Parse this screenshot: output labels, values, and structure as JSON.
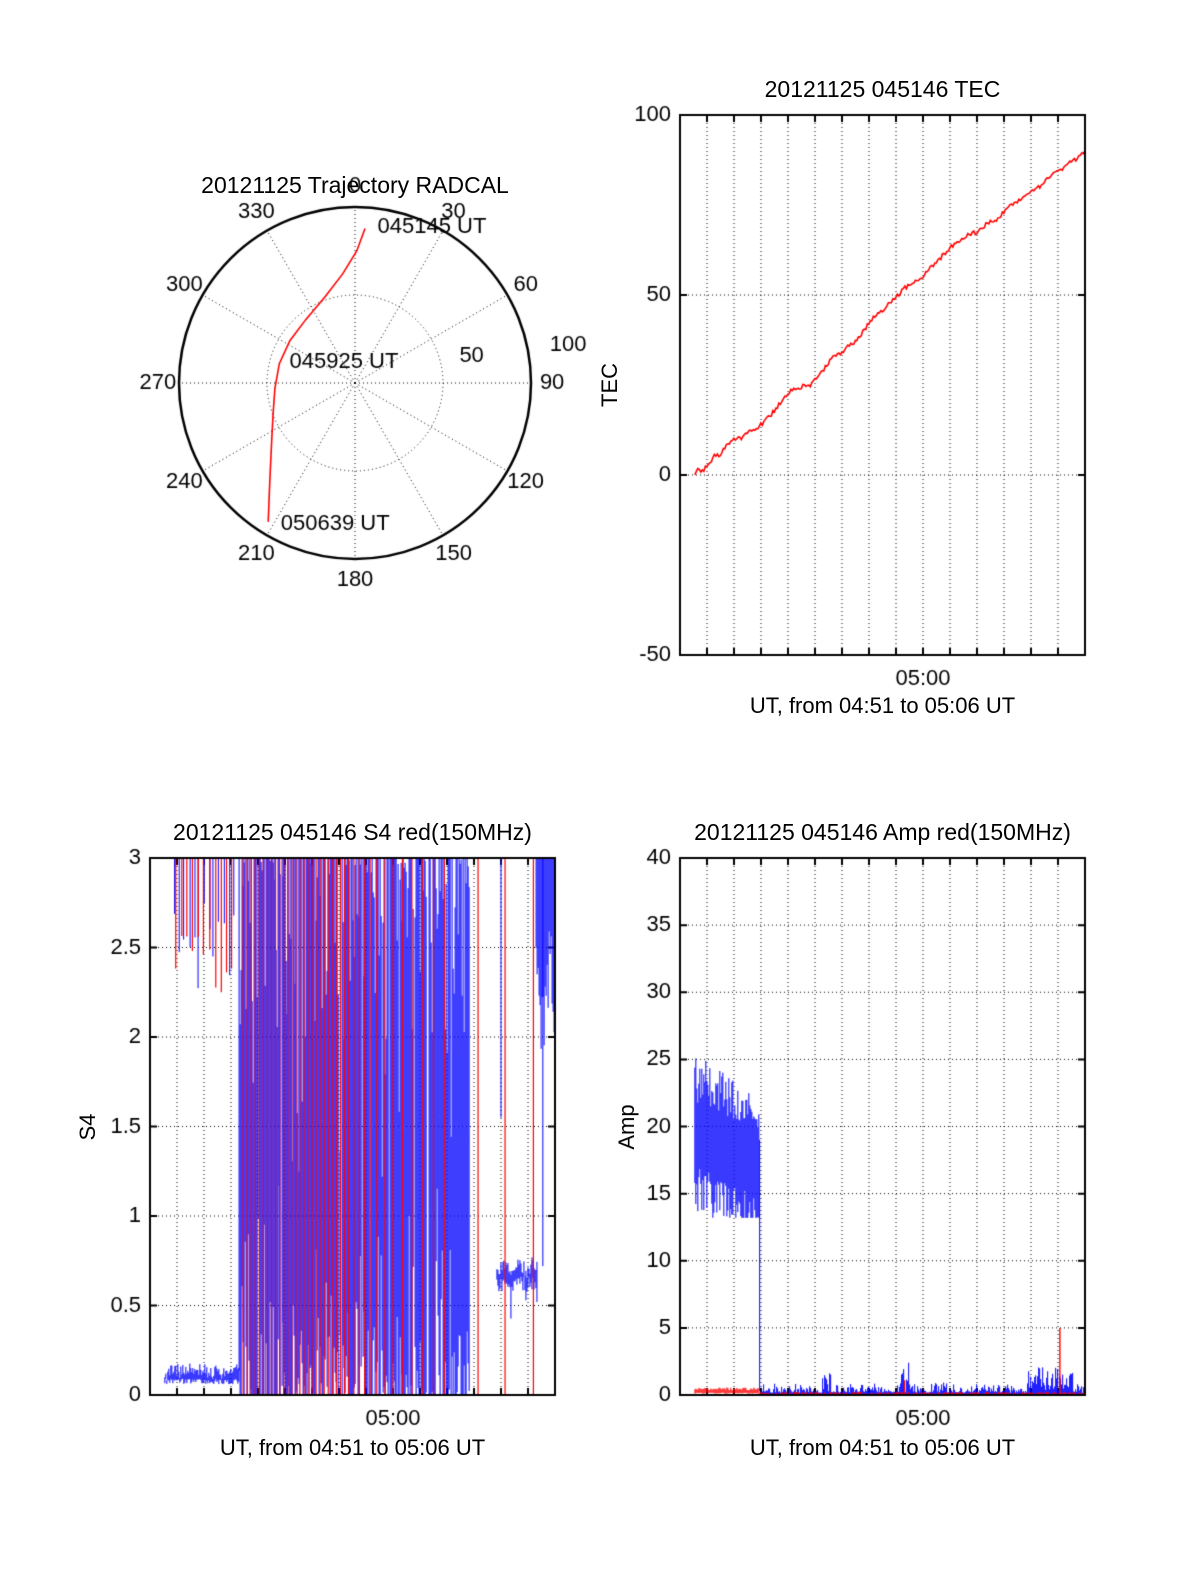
{
  "page": {
    "background": "#ffffff"
  },
  "colors": {
    "red": "#ff0000",
    "blue": "#0000ff",
    "axis": "#000000"
  },
  "chart_data": [
    {
      "id": "trajectory",
      "type": "polar-trajectory",
      "title": "20121125 Trajectory RADCAL",
      "azimuth_tick_labels": [
        "0",
        "30",
        "60",
        "90",
        "120",
        "150",
        "180",
        "210",
        "240",
        "270",
        "300",
        "330"
      ],
      "radial_tick_labels": [
        {
          "label": "50",
          "az_deg": 77,
          "r": 0.68
        },
        {
          "label": "100",
          "az_deg": 80,
          "r": 1.23
        }
      ],
      "rings": [
        0.5,
        1.0
      ],
      "spoke_step_deg": 30,
      "annotations": [
        {
          "label": "045145 UT",
          "x": 0.1,
          "y": 0.885
        },
        {
          "label": "045925 UT",
          "x": -0.4,
          "y": 0.12
        },
        {
          "label": "050639 UT",
          "x": -0.45,
          "y": -0.8
        }
      ],
      "trajectory_color": "#ff0000",
      "trajectory_xy": [
        [
          0.057,
          0.878
        ],
        [
          0.01,
          0.75
        ],
        [
          -0.07,
          0.62
        ],
        [
          -0.17,
          0.49
        ],
        [
          -0.28,
          0.36
        ],
        [
          -0.37,
          0.24
        ],
        [
          -0.43,
          0.11
        ],
        [
          -0.455,
          -0.03
        ],
        [
          -0.465,
          -0.17
        ],
        [
          -0.473,
          -0.32
        ],
        [
          -0.48,
          -0.47
        ],
        [
          -0.487,
          -0.63
        ],
        [
          -0.493,
          -0.789
        ]
      ]
    },
    {
      "id": "tec",
      "type": "line",
      "title": "20121125 045146 TEC",
      "xlabel": "UT, from 04:51 to 05:06 UT",
      "ylabel": "TEC",
      "xlim": [
        0,
        15
      ],
      "ylim": [
        -50,
        100
      ],
      "yticks": [
        -50,
        0,
        50,
        100
      ],
      "ytick_labels": [
        "-50",
        "0",
        "50",
        "100"
      ],
      "xtick_labels": [
        {
          "x": 9,
          "label": "05:00"
        }
      ],
      "grid_y": [
        0,
        50
      ],
      "grid_x_every_min": 1,
      "series": [
        {
          "name": "TEC",
          "color": "#ff0000",
          "points": [
            [
              0.55,
              0.6
            ],
            [
              0.7,
              1.5
            ],
            [
              0.85,
              1.0
            ],
            [
              1.0,
              2.6
            ],
            [
              1.15,
              3.8
            ],
            [
              1.3,
              5.6
            ],
            [
              1.45,
              5.0
            ],
            [
              1.6,
              6.8
            ],
            [
              1.8,
              8.8
            ],
            [
              2.0,
              10.4
            ],
            [
              2.2,
              9.9
            ],
            [
              2.4,
              11.4
            ],
            [
              2.6,
              12.9
            ],
            [
              2.8,
              12.4
            ],
            [
              3.0,
              14
            ],
            [
              3.2,
              15.4
            ],
            [
              3.4,
              17
            ],
            [
              3.6,
              19
            ],
            [
              3.8,
              21
            ],
            [
              4.0,
              23
            ],
            [
              4.2,
              24
            ],
            [
              4.4,
              23.8
            ],
            [
              4.6,
              25.3
            ],
            [
              4.8,
              24.8
            ],
            [
              5.0,
              26.4
            ],
            [
              5.2,
              28
            ],
            [
              5.4,
              30
            ],
            [
              5.6,
              32.4
            ],
            [
              5.8,
              32.9
            ],
            [
              6.0,
              34
            ],
            [
              6.2,
              36.4
            ],
            [
              6.4,
              36
            ],
            [
              6.6,
              38
            ],
            [
              6.8,
              40
            ],
            [
              7.0,
              42.4
            ],
            [
              7.2,
              44
            ],
            [
              7.4,
              45.4
            ],
            [
              7.6,
              46.4
            ],
            [
              7.8,
              48
            ],
            [
              8.0,
              49.4
            ],
            [
              8.2,
              51
            ],
            [
              8.4,
              52.4
            ],
            [
              8.6,
              53.4
            ],
            [
              8.8,
              54
            ],
            [
              9.0,
              55.4
            ],
            [
              9.2,
              57
            ],
            [
              9.4,
              58.4
            ],
            [
              9.6,
              60
            ],
            [
              9.8,
              61.4
            ],
            [
              10.0,
              63
            ],
            [
              10.2,
              64.4
            ],
            [
              10.4,
              65.4
            ],
            [
              10.6,
              66.4
            ],
            [
              10.8,
              67
            ],
            [
              11.0,
              67.4
            ],
            [
              11.2,
              68.4
            ],
            [
              11.4,
              70
            ],
            [
              11.6,
              70.4
            ],
            [
              11.8,
              71.4
            ],
            [
              12.0,
              73
            ],
            [
              12.2,
              74.4
            ],
            [
              12.4,
              75.4
            ],
            [
              12.6,
              76.4
            ],
            [
              12.8,
              77.4
            ],
            [
              13.0,
              79
            ],
            [
              13.2,
              79.4
            ],
            [
              13.4,
              80.4
            ],
            [
              13.6,
              82
            ],
            [
              13.8,
              83.4
            ],
            [
              14.0,
              84.4
            ],
            [
              14.2,
              85.4
            ],
            [
              14.4,
              87
            ],
            [
              14.6,
              87.4
            ],
            [
              14.8,
              88.4
            ],
            [
              15.0,
              90
            ]
          ]
        }
      ]
    },
    {
      "id": "s4",
      "type": "noisy-line",
      "title": "20121125 045146 S4 red(150MHz)",
      "xlabel": "UT, from 04:51 to 05:06 UT",
      "ylabel": "S4",
      "xlim": [
        0,
        15
      ],
      "ylim": [
        0,
        3
      ],
      "yticks": [
        0,
        0.5,
        1,
        1.5,
        2,
        2.5,
        3
      ],
      "ytick_labels": [
        "0",
        "0.5",
        "1",
        "1.5",
        "2",
        "2.5",
        "3"
      ],
      "xtick_labels": [
        {
          "x": 9,
          "label": "05:00"
        }
      ],
      "grid_y": [
        0.5,
        1,
        1.5,
        2,
        2.5
      ],
      "grid_x_every_min": 1,
      "blue": {
        "baseline": {
          "t0": 0.55,
          "t1": 3.3,
          "lo": 0.06,
          "hi": 0.13
        },
        "hang_spikes": {
          "t0": 0.9,
          "t1": 3.1,
          "count": 13,
          "bottom_min": 2.25,
          "bottom_max": 2.75
        },
        "chaos": {
          "t0": 3.3,
          "t1": 11.85,
          "lo": 0,
          "hi": 3
        },
        "mid_band": {
          "t0": 12.85,
          "t1": 14.35,
          "lo": 0.58,
          "hi": 0.75
        },
        "top_band": {
          "t0": 14.3,
          "t1": 15.0,
          "bottom_min": 1.9,
          "bottom_max": 2.6
        },
        "tall_spikes": [
          {
            "t": 13.0,
            "lo": 1.55
          },
          {
            "t": 14.55,
            "lo": 0.72
          }
        ]
      },
      "red": {
        "hang_spikes": {
          "t0": 0.95,
          "t1": 3.05,
          "count": 11,
          "bottom_min": 2.2,
          "bottom_max": 2.6
        },
        "full_spikes": [
          3.45,
          3.6,
          3.75,
          3.9,
          4.05,
          4.2,
          4.35,
          4.5,
          4.65,
          4.8,
          4.95,
          5.1,
          5.25,
          5.4,
          5.55,
          5.7,
          5.85,
          6.0,
          6.15,
          6.3,
          6.45,
          6.6,
          6.75,
          6.9,
          7.05,
          7.2,
          7.35,
          7.55,
          7.75,
          7.95,
          8.15,
          8.4,
          8.7,
          9.0,
          9.35,
          9.7,
          10.1,
          10.5,
          10.9,
          12.15,
          13.15,
          14.2
        ]
      }
    },
    {
      "id": "amp",
      "type": "noisy-line",
      "title": "20121125 045146 Amp red(150MHz)",
      "xlabel": "UT, from 04:51 to 05:06 UT",
      "ylabel": "Amp",
      "xlim": [
        0,
        15
      ],
      "ylim": [
        0,
        40
      ],
      "yticks": [
        0,
        5,
        10,
        15,
        20,
        25,
        30,
        35,
        40
      ],
      "ytick_labels": [
        "0",
        "5",
        "10",
        "15",
        "20",
        "25",
        "30",
        "35",
        "40"
      ],
      "xtick_labels": [
        {
          "x": 9,
          "label": "05:00"
        }
      ],
      "grid_y": [
        5,
        10,
        15,
        20,
        25,
        30,
        35
      ],
      "grid_x_every_min": 1,
      "blue": {
        "band": {
          "t0": 0.55,
          "t1": 2.95,
          "center_start": 19.5,
          "center_end": 17.5,
          "top_max": 25.3,
          "bottom_min": 13.2
        },
        "drop": {
          "t": 2.95,
          "from": 19,
          "to": 0.3
        },
        "noise": {
          "t0": 2.95,
          "t1": 15,
          "lo": 0.05,
          "hi": 0.9
        },
        "bumps": [
          {
            "t0": 5.25,
            "t1": 5.6,
            "hi": 1.8
          },
          {
            "t0": 8.2,
            "t1": 8.5,
            "hi": 2.6
          },
          {
            "t0": 12.9,
            "t1": 14.6,
            "hi": 1.9
          }
        ]
      },
      "red": {
        "band": {
          "t0": 0.55,
          "t1": 2.95,
          "lo": 0.1,
          "hi": 0.55
        },
        "noise": {
          "t0": 2.95,
          "t1": 15,
          "lo": 0.02,
          "hi": 0.25
        },
        "spikes": [
          {
            "t": 14.07,
            "v": 5.0
          },
          {
            "t": 8.32,
            "v": 1.1
          }
        ]
      }
    }
  ]
}
